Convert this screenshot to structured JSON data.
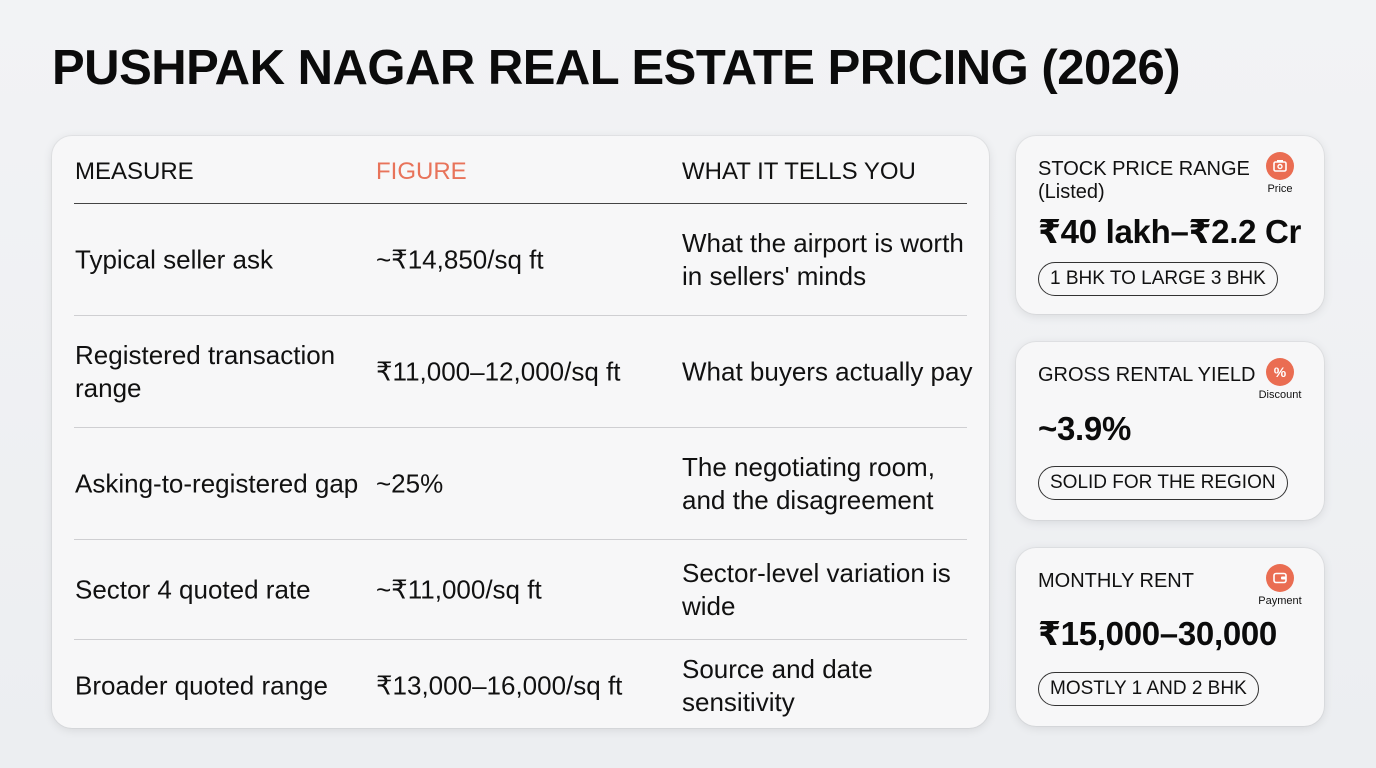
{
  "title": "PUSHPAK NAGAR REAL ESTATE PRICING (2026)",
  "table": {
    "headers": [
      "MEASURE",
      "FIGURE",
      "WHAT IT TELLS YOU"
    ],
    "rows": [
      {
        "measure": "Typical seller ask",
        "figure": "~₹14,850/sq ft",
        "meaning": "What the airport is worth in sellers' minds"
      },
      {
        "measure": "Registered transaction range",
        "figure": "₹11,000–12,000/sq ft",
        "meaning": "What buyers actually pay"
      },
      {
        "measure": "Asking-to-registered gap",
        "figure": "~25%",
        "meaning": "The negotiating room, and the disagreement"
      },
      {
        "measure": "Sector 4 quoted rate",
        "figure": "~₹11,000/sq ft",
        "meaning": "Sector-level variation is wide"
      },
      {
        "measure": "Broader quoted range",
        "figure": "₹13,000–16,000/sq ft",
        "meaning": "Source and date sensitivity"
      }
    ]
  },
  "cards": [
    {
      "label": "STOCK PRICE RANGE (Listed)",
      "value": "₹40 lakh–₹2.2 Cr",
      "pill": "1 BHK TO LARGE 3 BHK",
      "icon": "price-tag-icon",
      "icon_label": "Price"
    },
    {
      "label": "GROSS RENTAL YIELD",
      "value": "~3.9%",
      "pill": "SOLID FOR THE REGION",
      "icon": "percent-icon",
      "icon_label": "Discount"
    },
    {
      "label": "MONTHLY RENT",
      "value": "₹15,000–30,000",
      "pill": "MOSTLY 1 AND 2 BHK",
      "icon": "wallet-icon",
      "icon_label": "Payment"
    }
  ],
  "colors": {
    "accent": "#e8735a",
    "icon_bg": "#ea6d52"
  }
}
